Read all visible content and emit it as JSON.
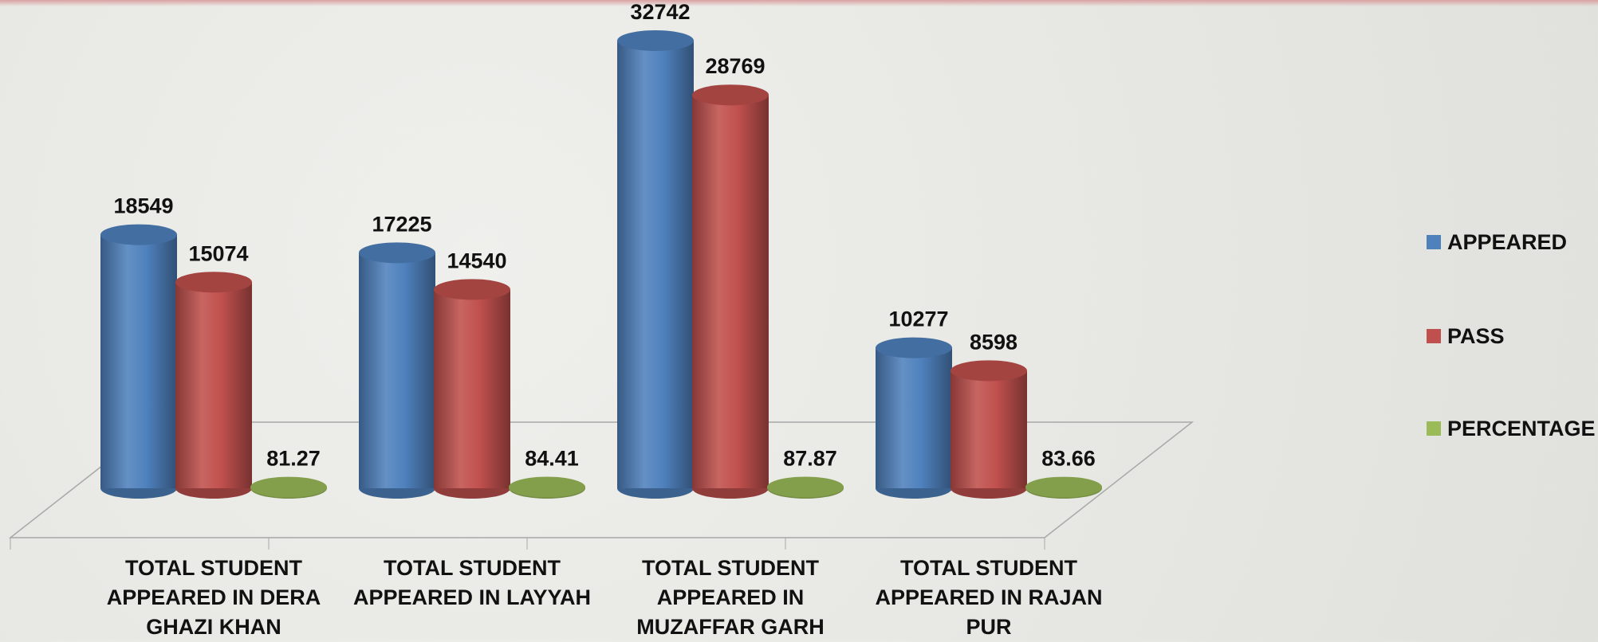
{
  "chart_data": {
    "type": "bar3d",
    "categories": [
      "TOTAL STUDENT APPEARED IN DERA GHAZI KHAN",
      "TOTAL STUDENT APPEARED IN LAYYAH",
      "TOTAL STUDENT APPEARED IN MUZAFFAR GARH",
      "TOTAL STUDENT APPEARED IN RAJAN PUR"
    ],
    "series": [
      {
        "name": "APPEARED",
        "color": "#4f81bd",
        "values": [
          18549,
          17225,
          32742,
          10277
        ]
      },
      {
        "name": "PASS",
        "color": "#c0504d",
        "values": [
          15074,
          14540,
          28769,
          8598
        ]
      },
      {
        "name": "PERCENTAGE",
        "color": "#9bbb59",
        "values": [
          81.27,
          84.41,
          87.87,
          83.66
        ]
      }
    ],
    "legend": "right"
  }
}
